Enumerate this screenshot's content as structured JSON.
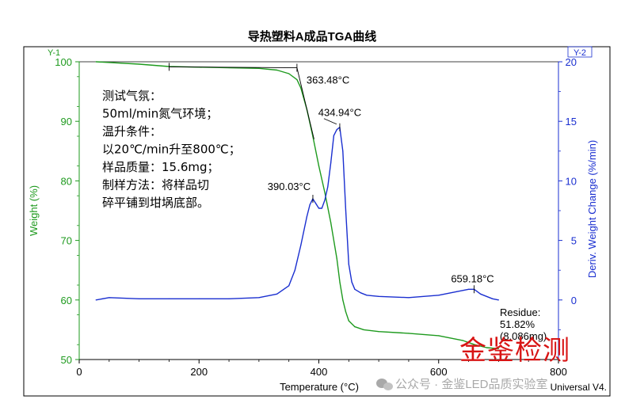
{
  "chart_data": {
    "type": "line",
    "title": "导热塑料A成品TGA曲线",
    "left_corner_tag": "Y-1",
    "right_corner_tag": "Y-2",
    "xlabel": "Temperature (°C)",
    "ylabel_left": "Weight (%)",
    "ylabel_right": "Deriv. Weight Change (%/min)",
    "xlim": [
      0,
      800
    ],
    "ylim_left": [
      50,
      100
    ],
    "ylim_right": [
      -5,
      20
    ],
    "x_ticks": [
      "0",
      "200",
      "400",
      "600",
      "800"
    ],
    "y_left_ticks": [
      "50",
      "60",
      "70",
      "80",
      "90",
      "100"
    ],
    "y_right_ticks": [
      "0",
      "5",
      "10",
      "15",
      "20"
    ],
    "grid": false,
    "colors": {
      "weight": "#1e9a1e",
      "deriv": "#1a2fd0",
      "frame": "#000000",
      "watermark": "#d81414"
    },
    "series": [
      {
        "axis": "left",
        "x": [
          28,
          100,
          150,
          200,
          250,
          300,
          330,
          350,
          363.48,
          370,
          380,
          390,
          400,
          410,
          420,
          430,
          435,
          440,
          445,
          450,
          460,
          475,
          500,
          550,
          600,
          640,
          660,
          680,
          700
        ],
        "values": [
          100,
          99.6,
          99.2,
          99.1,
          99.0,
          98.9,
          98.6,
          98.0,
          97.0,
          95.6,
          92.0,
          87.5,
          82.5,
          78.0,
          73.0,
          67.0,
          63.0,
          60.0,
          58.0,
          56.5,
          55.5,
          55.0,
          54.7,
          54.4,
          54.0,
          53.2,
          52.5,
          52.0,
          51.82
        ]
      },
      {
        "axis": "right",
        "x": [
          28,
          50,
          100,
          150,
          200,
          250,
          300,
          330,
          350,
          360,
          370,
          380,
          385,
          390,
          395,
          400,
          405,
          410,
          415,
          420,
          425,
          430,
          434.94,
          440,
          445,
          450,
          455,
          460,
          470,
          480,
          500,
          550,
          600,
          630,
          650,
          659.18,
          670,
          690,
          700
        ],
        "values": [
          0.0,
          0.2,
          0.1,
          0.1,
          0.1,
          0.1,
          0.2,
          0.5,
          1.2,
          2.5,
          4.6,
          7.0,
          8.0,
          8.5,
          8.1,
          7.7,
          7.7,
          8.4,
          9.5,
          11.5,
          13.8,
          14.3,
          14.5,
          12.5,
          7.5,
          3.0,
          1.5,
          0.9,
          0.6,
          0.4,
          0.3,
          0.2,
          0.4,
          0.7,
          0.9,
          0.9,
          0.5,
          0.1,
          0.0
        ]
      }
    ],
    "peak_labels": [
      {
        "text": "363.48°C",
        "x": 363.48,
        "axis": "left",
        "y": 97.0
      },
      {
        "text": "434.94°C",
        "x": 434.94,
        "axis": "right",
        "y": 14.5
      },
      {
        "text": "390.03°C",
        "x": 390.03,
        "axis": "right",
        "y": 8.5
      },
      {
        "text": "659.18°C",
        "x": 659.18,
        "axis": "right",
        "y": 0.9
      }
    ],
    "conditions": [
      "测试气氛：",
      "50ml/min氮气环境；",
      "温升条件：",
      "以20℃/min升至800℃；",
      "样品质量：15.6mg；",
      "制样方法：将样品切",
      "碎平铺到坩埚底部。"
    ],
    "residue": [
      "Residue:",
      "51.82%",
      "(8.086mg)"
    ],
    "footer_right": "Universal V4.",
    "watermark_red": "金鉴检测",
    "watermark_gray": "公众号 · 金鉴LED品质实验室"
  }
}
